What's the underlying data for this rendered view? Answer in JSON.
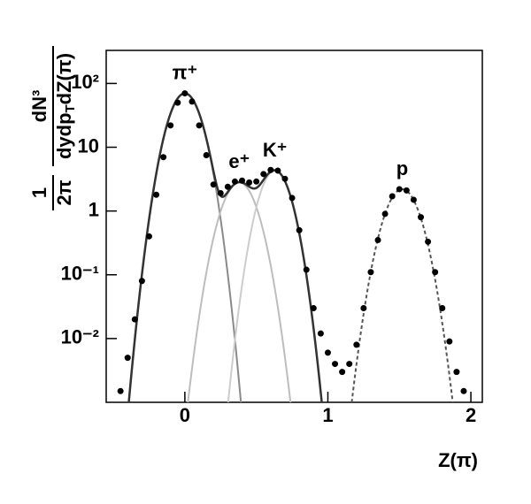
{
  "chart_data": {
    "type": "scatter",
    "xlabel": "Z(π)",
    "ylabel": {
      "factor_num": "1",
      "factor_den": "2π",
      "num": "dN³",
      "den_main": "dydp",
      "den_sub": "T",
      "den_rest": "dZ(π)"
    },
    "log_y": true,
    "xlim": [
      -0.55,
      2.08
    ],
    "ylim": [
      0.001,
      330
    ],
    "xticks": [
      0,
      1,
      2
    ],
    "yticks": [
      {
        "value": 100,
        "label": "10²"
      },
      10,
      1,
      {
        "value": 0.1,
        "label": "10⁻¹"
      },
      {
        "value": 0.01,
        "label": "10⁻²"
      }
    ],
    "color": "#000000",
    "x": [
      -0.45,
      -0.4,
      -0.35,
      -0.3,
      -0.25,
      -0.2,
      -0.15,
      -0.1,
      -0.05,
      0,
      0.05,
      0.1,
      0.15,
      0.2,
      0.25,
      0.3,
      0.35,
      0.4,
      0.45,
      0.5,
      0.55,
      0.6,
      0.65,
      0.7,
      0.75,
      0.8,
      0.85,
      0.9,
      0.95,
      1.0,
      1.05,
      1.1,
      1.15,
      1.2,
      1.25,
      1.3,
      1.35,
      1.4,
      1.45,
      1.5,
      1.55,
      1.6,
      1.65,
      1.7,
      1.75,
      1.8,
      1.85,
      1.9,
      1.95
    ],
    "values": [
      0.0015,
      0.005,
      0.02,
      0.08,
      0.4,
      1.8,
      7,
      22,
      50,
      70,
      52,
      22,
      7.5,
      2.6,
      1.9,
      2.4,
      2.9,
      3.0,
      2.8,
      2.9,
      3.8,
      4.4,
      4.3,
      3.2,
      1.6,
      0.5,
      0.12,
      0.03,
      0.012,
      0.006,
      0.004,
      0.003,
      0.004,
      0.008,
      0.03,
      0.11,
      0.35,
      0.9,
      1.7,
      2.2,
      2.1,
      1.5,
      0.8,
      0.33,
      0.11,
      0.03,
      0.009,
      0.003,
      0.0015
    ],
    "fits": [
      {
        "name": "π⁺",
        "amplitude": 70,
        "mean": 0,
        "sigma": 0.083,
        "color": "#8a8a8a"
      },
      {
        "name": "e⁺",
        "amplitude": 2.8,
        "mean": 0.38,
        "sigma": 0.09,
        "color": "#bdbdbd"
      },
      {
        "name": "K⁺",
        "amplitude": 4.3,
        "mean": 0.63,
        "sigma": 0.08,
        "color": "#cccccc"
      },
      {
        "name": "p",
        "amplitude": 2.2,
        "mean": 1.52,
        "sigma": 0.09,
        "color": "#555555"
      }
    ]
  }
}
